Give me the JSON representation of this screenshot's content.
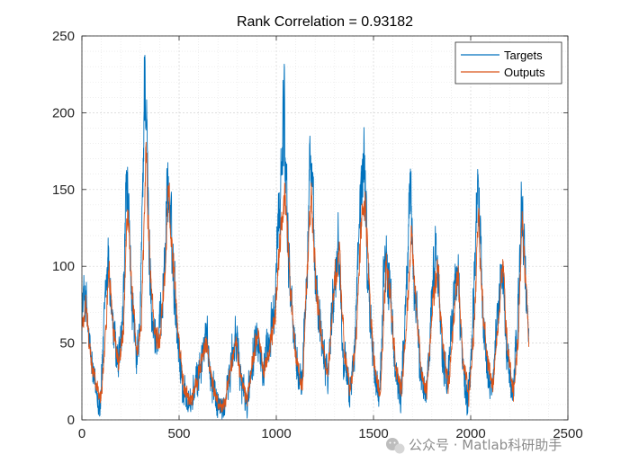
{
  "chart_data": {
    "type": "line",
    "title": "Rank Correlation = 0.93182",
    "xlabel": "",
    "ylabel": "",
    "xlim": [
      0,
      2500
    ],
    "ylim": [
      0,
      250
    ],
    "xticks": [
      0,
      500,
      1000,
      1500,
      2000,
      2500
    ],
    "yticks": [
      0,
      50,
      100,
      150,
      200,
      250
    ],
    "grid": "on (major + minor, dotted)",
    "legend_position": "top-right",
    "n_points": 2300,
    "series": [
      {
        "name": "Targets",
        "color": "#0072BD",
        "envelope_points": [
          [
            0,
            70
          ],
          [
            15,
            85
          ],
          [
            40,
            45
          ],
          [
            70,
            20
          ],
          [
            95,
            10
          ],
          [
            120,
            75
          ],
          [
            135,
            105
          ],
          [
            160,
            60
          ],
          [
            185,
            35
          ],
          [
            210,
            60
          ],
          [
            230,
            160
          ],
          [
            250,
            95
          ],
          [
            280,
            35
          ],
          [
            300,
            60
          ],
          [
            325,
            240
          ],
          [
            345,
            110
          ],
          [
            370,
            55
          ],
          [
            395,
            50
          ],
          [
            425,
            100
          ],
          [
            440,
            155
          ],
          [
            465,
            110
          ],
          [
            490,
            60
          ],
          [
            520,
            20
          ],
          [
            560,
            10
          ],
          [
            600,
            30
          ],
          [
            640,
            55
          ],
          [
            670,
            25
          ],
          [
            700,
            10
          ],
          [
            730,
            5
          ],
          [
            760,
            30
          ],
          [
            790,
            55
          ],
          [
            820,
            25
          ],
          [
            850,
            10
          ],
          [
            880,
            45
          ],
          [
            900,
            65
          ],
          [
            930,
            30
          ],
          [
            960,
            45
          ],
          [
            990,
            70
          ],
          [
            1020,
            150
          ],
          [
            1040,
            207
          ],
          [
            1065,
            100
          ],
          [
            1100,
            40
          ],
          [
            1130,
            20
          ],
          [
            1160,
            110
          ],
          [
            1175,
            180
          ],
          [
            1200,
            90
          ],
          [
            1235,
            55
          ],
          [
            1265,
            30
          ],
          [
            1300,
            95
          ],
          [
            1320,
            115
          ],
          [
            1345,
            45
          ],
          [
            1375,
            15
          ],
          [
            1405,
            50
          ],
          [
            1430,
            130
          ],
          [
            1450,
            178
          ],
          [
            1475,
            80
          ],
          [
            1505,
            30
          ],
          [
            1530,
            15
          ],
          [
            1560,
            110
          ],
          [
            1580,
            90
          ],
          [
            1610,
            35
          ],
          [
            1640,
            15
          ],
          [
            1665,
            70
          ],
          [
            1690,
            150
          ],
          [
            1710,
            90
          ],
          [
            1740,
            30
          ],
          [
            1770,
            15
          ],
          [
            1800,
            80
          ],
          [
            1825,
            115
          ],
          [
            1850,
            50
          ],
          [
            1880,
            20
          ],
          [
            1905,
            65
          ],
          [
            1930,
            110
          ],
          [
            1955,
            40
          ],
          [
            1985,
            10
          ],
          [
            2010,
            55
          ],
          [
            2035,
            160
          ],
          [
            2060,
            75
          ],
          [
            2085,
            35
          ],
          [
            2110,
            20
          ],
          [
            2135,
            60
          ],
          [
            2160,
            105
          ],
          [
            2185,
            45
          ],
          [
            2215,
            15
          ],
          [
            2240,
            55
          ],
          [
            2260,
            140
          ],
          [
            2280,
            90
          ],
          [
            2300,
            55
          ]
        ]
      },
      {
        "name": "Outputs",
        "color": "#D95319",
        "envelope_points": [
          [
            0,
            60
          ],
          [
            20,
            75
          ],
          [
            45,
            40
          ],
          [
            70,
            25
          ],
          [
            100,
            15
          ],
          [
            125,
            65
          ],
          [
            140,
            95
          ],
          [
            165,
            55
          ],
          [
            190,
            35
          ],
          [
            215,
            60
          ],
          [
            235,
            140
          ],
          [
            255,
            90
          ],
          [
            285,
            40
          ],
          [
            305,
            60
          ],
          [
            330,
            175
          ],
          [
            350,
            100
          ],
          [
            375,
            55
          ],
          [
            400,
            50
          ],
          [
            430,
            100
          ],
          [
            445,
            150
          ],
          [
            470,
            100
          ],
          [
            495,
            55
          ],
          [
            525,
            20
          ],
          [
            560,
            12
          ],
          [
            600,
            30
          ],
          [
            640,
            50
          ],
          [
            670,
            25
          ],
          [
            700,
            10
          ],
          [
            730,
            8
          ],
          [
            760,
            30
          ],
          [
            790,
            50
          ],
          [
            820,
            25
          ],
          [
            850,
            12
          ],
          [
            880,
            40
          ],
          [
            905,
            60
          ],
          [
            935,
            30
          ],
          [
            965,
            45
          ],
          [
            995,
            70
          ],
          [
            1025,
            130
          ],
          [
            1045,
            145
          ],
          [
            1070,
            90
          ],
          [
            1100,
            40
          ],
          [
            1135,
            22
          ],
          [
            1160,
            100
          ],
          [
            1180,
            145
          ],
          [
            1205,
            85
          ],
          [
            1235,
            50
          ],
          [
            1265,
            30
          ],
          [
            1300,
            90
          ],
          [
            1325,
            105
          ],
          [
            1350,
            45
          ],
          [
            1380,
            18
          ],
          [
            1410,
            50
          ],
          [
            1435,
            120
          ],
          [
            1455,
            150
          ],
          [
            1480,
            75
          ],
          [
            1510,
            30
          ],
          [
            1535,
            18
          ],
          [
            1565,
            100
          ],
          [
            1585,
            85
          ],
          [
            1615,
            35
          ],
          [
            1645,
            18
          ],
          [
            1670,
            65
          ],
          [
            1695,
            120
          ],
          [
            1715,
            85
          ],
          [
            1745,
            30
          ],
          [
            1775,
            18
          ],
          [
            1805,
            75
          ],
          [
            1830,
            100
          ],
          [
            1855,
            50
          ],
          [
            1885,
            22
          ],
          [
            1910,
            60
          ],
          [
            1935,
            100
          ],
          [
            1960,
            40
          ],
          [
            1990,
            15
          ],
          [
            2015,
            55
          ],
          [
            2040,
            130
          ],
          [
            2065,
            70
          ],
          [
            2090,
            35
          ],
          [
            2115,
            22
          ],
          [
            2140,
            60
          ],
          [
            2165,
            100
          ],
          [
            2190,
            45
          ],
          [
            2220,
            18
          ],
          [
            2245,
            55
          ],
          [
            2265,
            130
          ],
          [
            2285,
            85
          ],
          [
            2300,
            50
          ]
        ]
      }
    ]
  },
  "watermark": {
    "text": "公众号 · Matlab科研助手",
    "icon": "wechat-logo-icon"
  }
}
